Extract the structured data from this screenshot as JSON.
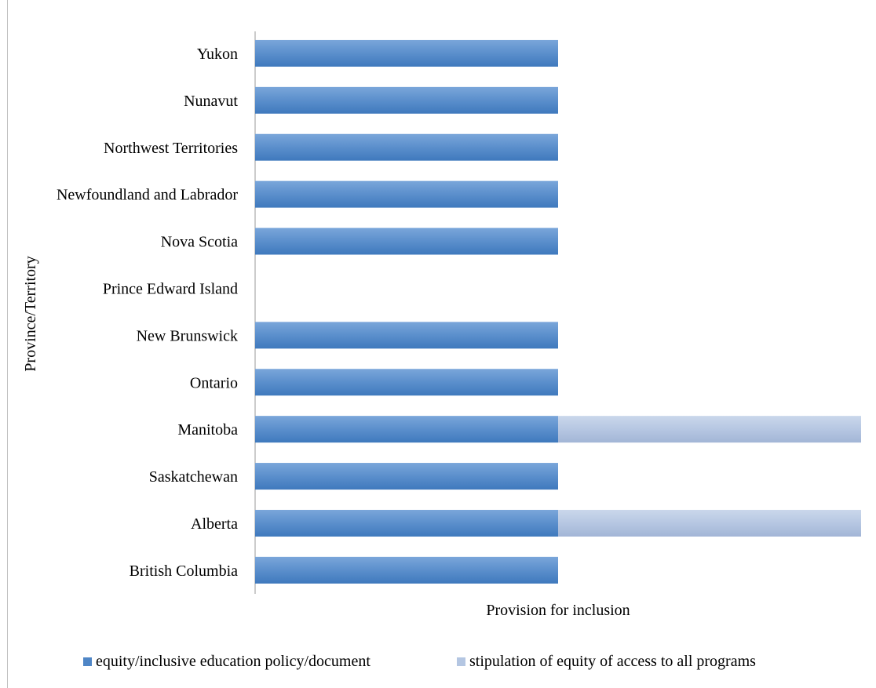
{
  "chart_data": {
    "type": "bar",
    "orientation": "horizontal",
    "stacked": true,
    "categories": [
      "Yukon",
      "Nunavut",
      "Northwest Territories",
      "Newfoundland and Labrador",
      "Nova Scotia",
      "Prince Edward Island",
      "New Brunswick",
      "Ontario",
      "Manitoba",
      "Saskatchewan",
      "Alberta",
      "British Columbia"
    ],
    "series": [
      {
        "name": "equity/inclusive education policy/document",
        "color": "#4f86c6",
        "values": [
          1,
          1,
          1,
          1,
          1,
          0,
          1,
          1,
          1,
          1,
          1,
          1
        ]
      },
      {
        "name": "stipulation of equity of access to all programs",
        "color": "#b4c6e2",
        "values": [
          0,
          0,
          0,
          0,
          0,
          0,
          0,
          0,
          1,
          0,
          1,
          0
        ]
      }
    ],
    "xlabel": "Provision for inclusion",
    "ylabel": "Province/Territory",
    "xlim": [
      0,
      2
    ],
    "grid": false,
    "legend_position": "bottom"
  }
}
